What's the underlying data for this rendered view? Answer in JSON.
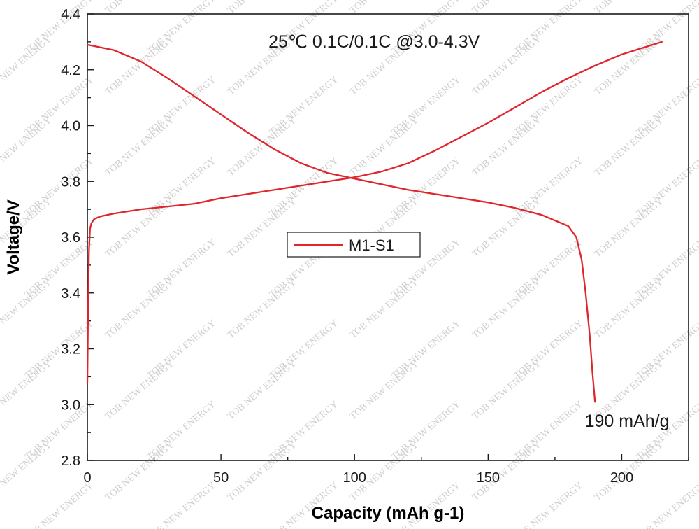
{
  "chart_data": {
    "type": "line",
    "title": "",
    "xlabel": "Capacity (mAh g-1)",
    "ylabel": "Voltage/V",
    "xlim": [
      0,
      225
    ],
    "ylim": [
      2.8,
      4.4
    ],
    "xticks": [
      0,
      50,
      100,
      150,
      200
    ],
    "yticks": [
      2.8,
      3.0,
      3.2,
      3.4,
      3.6,
      3.8,
      4.0,
      4.2,
      4.4
    ],
    "xtick_labels": [
      "0",
      "50",
      "100",
      "150",
      "200"
    ],
    "ytick_labels": [
      "2.8",
      "3.0",
      "3.2",
      "3.4",
      "3.6",
      "3.8",
      "4.0",
      "4.2",
      "4.4"
    ],
    "grid": false,
    "legend_position": "center-left",
    "line_color": "#e0262d",
    "series": [
      {
        "name": "M1-S1",
        "segment": "charge",
        "x": [
          0,
          0.3,
          0.6,
          1,
          1.5,
          2.5,
          5,
          10,
          20,
          30,
          40,
          50,
          60,
          70,
          80,
          90,
          100,
          110,
          120,
          130,
          140,
          150,
          160,
          170,
          180,
          190,
          200,
          210,
          215
        ],
        "y": [
          3.08,
          3.35,
          3.55,
          3.63,
          3.65,
          3.665,
          3.675,
          3.685,
          3.7,
          3.71,
          3.72,
          3.74,
          3.755,
          3.77,
          3.785,
          3.8,
          3.815,
          3.835,
          3.865,
          3.91,
          3.96,
          4.01,
          4.065,
          4.12,
          4.17,
          4.215,
          4.255,
          4.285,
          4.3
        ]
      },
      {
        "name": "M1-S1",
        "segment": "discharge",
        "x": [
          0,
          10,
          20,
          30,
          40,
          50,
          60,
          70,
          80,
          90,
          100,
          110,
          120,
          130,
          140,
          150,
          160,
          170,
          175,
          180,
          183,
          185,
          186.5,
          188,
          189,
          190
        ],
        "y": [
          4.29,
          4.27,
          4.23,
          4.17,
          4.105,
          4.04,
          3.975,
          3.915,
          3.865,
          3.83,
          3.81,
          3.79,
          3.77,
          3.755,
          3.74,
          3.725,
          3.705,
          3.68,
          3.66,
          3.64,
          3.6,
          3.52,
          3.4,
          3.25,
          3.12,
          3.01
        ]
      }
    ],
    "annotations": [
      {
        "text": "25℃ 0.1C/0.1C @3.0-4.3V",
        "x": 100,
        "y": 4.3
      },
      {
        "text": "190 mAh/g",
        "x": 202,
        "y": 2.94
      }
    ],
    "watermark_text": "TOB NEW ENERGY"
  }
}
